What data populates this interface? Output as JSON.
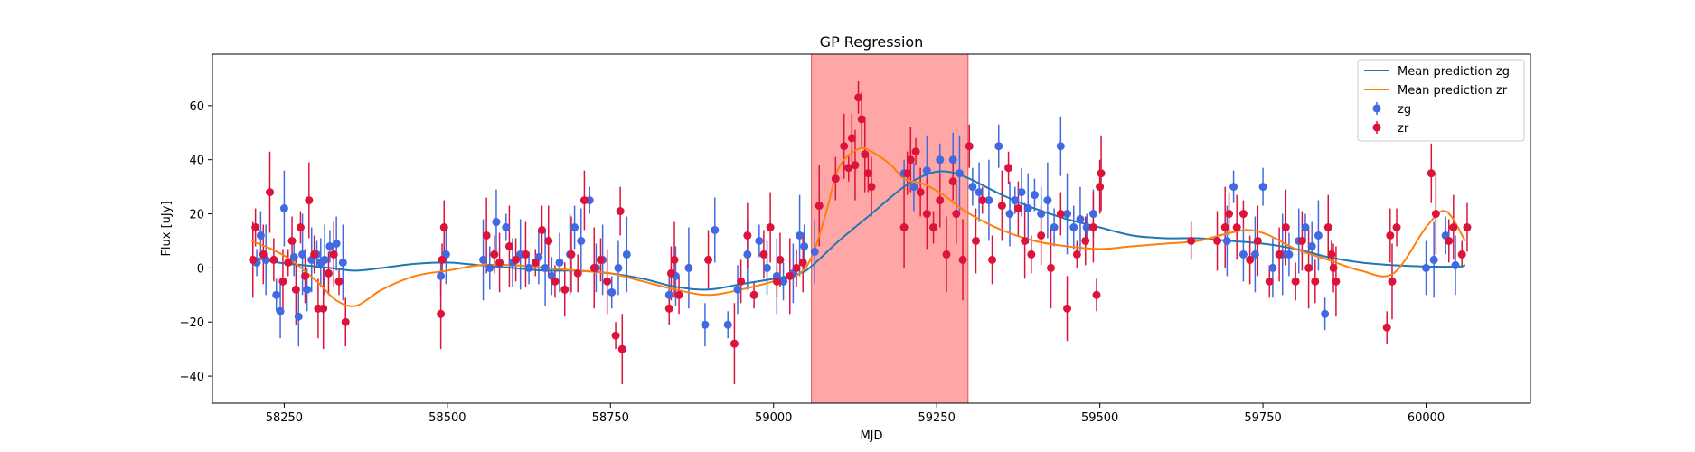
{
  "chart_data": {
    "type": "scatter",
    "title": "GP Regression",
    "xlabel": "MJD",
    "ylabel": "Flux [uJy]",
    "xlim": [
      58140,
      60160
    ],
    "ylim": [
      -50,
      79
    ],
    "x_ticks": [
      58250,
      58500,
      58750,
      59000,
      59250,
      59500,
      59750,
      60000
    ],
    "y_ticks": [
      -40,
      -20,
      0,
      20,
      40,
      60
    ],
    "grid": false,
    "legend_position": "top-right",
    "highlight_region": {
      "x0": 59058,
      "x1": 59298,
      "color": "#ff6b6b"
    },
    "lines": [
      {
        "name": "Mean prediction zg",
        "color": "#1f77b4",
        "x": [
          58200,
          58240,
          58280,
          58320,
          58360,
          58400,
          58450,
          58500,
          58550,
          58600,
          58650,
          58700,
          58750,
          58800,
          58850,
          58900,
          58950,
          59000,
          59040,
          59060,
          59100,
          59150,
          59200,
          59240,
          59270,
          59300,
          59350,
          59400,
          59450,
          59500,
          59550,
          59600,
          59650,
          59700,
          59750,
          59800,
          59850,
          59900,
          59950,
          60000,
          60050,
          60060
        ],
        "y": [
          4,
          2,
          1,
          0,
          -1,
          0,
          1.5,
          2,
          1,
          0,
          -1,
          -1,
          -2,
          -4,
          -7,
          -8,
          -6,
          -4,
          -2,
          1,
          10,
          20,
          30,
          35,
          35.5,
          33,
          27,
          22,
          18,
          15,
          12,
          11,
          11,
          10,
          9,
          7,
          4,
          2,
          1,
          0.5,
          0.5,
          1
        ]
      },
      {
        "name": "Mean prediction zr",
        "color": "#ff7f0e",
        "x": [
          58200,
          58230,
          58260,
          58300,
          58330,
          58360,
          58400,
          58450,
          58500,
          58550,
          58600,
          58650,
          58700,
          58750,
          58800,
          58850,
          58900,
          58950,
          59000,
          59040,
          59060,
          59080,
          59100,
          59130,
          59150,
          59180,
          59200,
          59230,
          59260,
          59300,
          59350,
          59400,
          59450,
          59500,
          59550,
          59600,
          59650,
          59700,
          59730,
          59760,
          59800,
          59850,
          59900,
          59950,
          60000,
          60030,
          60060
        ],
        "y": [
          10,
          7,
          3,
          -5,
          -12,
          -14,
          -8,
          -3,
          -1,
          1,
          1,
          0,
          -1,
          -2,
          -5,
          -8,
          -10,
          -8,
          -5,
          -2,
          5,
          20,
          37,
          44,
          43,
          38,
          33,
          31,
          27,
          20,
          14,
          10,
          8,
          7,
          8,
          9,
          10,
          13,
          14,
          12,
          7,
          3,
          -1,
          -2,
          15,
          21,
          10
        ]
      }
    ],
    "scatter": [
      {
        "name": "zg",
        "color": "#4169e1",
        "x": [
          58208,
          58214,
          58222,
          58238,
          58244,
          58250,
          58265,
          58272,
          58278,
          58285,
          58292,
          58300,
          58306,
          58312,
          58320,
          58330,
          58340,
          58490,
          58498,
          58555,
          58565,
          58575,
          58590,
          58600,
          58612,
          58625,
          58640,
          58650,
          58660,
          58672,
          58688,
          58695,
          58705,
          58718,
          58728,
          58738,
          58752,
          58762,
          58775,
          58840,
          58850,
          58870,
          58895,
          58910,
          58930,
          58945,
          58960,
          58978,
          58990,
          59005,
          59015,
          59030,
          59040,
          59047,
          59063,
          59200,
          59215,
          59235,
          59255,
          59275,
          59285,
          59305,
          59315,
          59330,
          59345,
          59362,
          59370,
          59380,
          59390,
          59400,
          59410,
          59420,
          59430,
          59440,
          59450,
          59460,
          59470,
          59480,
          59490,
          59695,
          59705,
          59720,
          59738,
          59750,
          59765,
          59780,
          59790,
          59805,
          59815,
          59825,
          59835,
          59845,
          60000,
          60012,
          60030,
          60045
        ],
        "y": [
          2,
          12,
          3,
          -10,
          -16,
          22,
          4,
          -18,
          5,
          -8,
          3,
          5,
          2,
          3,
          8,
          9,
          2,
          -3,
          5,
          3,
          0,
          17,
          15,
          2,
          5,
          0,
          4,
          0,
          -3,
          2,
          5,
          15,
          10,
          25,
          0,
          3,
          -9,
          0,
          5,
          -10,
          -3,
          0,
          -21,
          14,
          -21,
          -8,
          5,
          10,
          0,
          -3,
          -5,
          -2,
          12,
          8,
          6,
          35,
          30,
          36,
          40,
          40,
          35,
          30,
          28,
          25,
          45,
          20,
          25,
          28,
          22,
          27,
          20,
          25,
          15,
          45,
          20,
          15,
          18,
          15,
          20,
          10,
          30,
          5,
          5,
          30,
          0,
          5,
          5,
          10,
          15,
          8,
          12,
          -17,
          0,
          3,
          12,
          1
        ]
      },
      {
        "name": "zr",
        "color": "#dc143c",
        "x": [
          58202,
          58206,
          58218,
          58228,
          58234,
          58248,
          58256,
          58262,
          58268,
          58275,
          58282,
          58288,
          58296,
          58302,
          58310,
          58318,
          58326,
          58334,
          58344,
          58490,
          58492,
          58495,
          58560,
          58572,
          58580,
          58595,
          58605,
          58620,
          58635,
          58645,
          58655,
          58665,
          58680,
          58690,
          58700,
          58710,
          58725,
          58735,
          58745,
          58758,
          58765,
          58768,
          58840,
          58843,
          58848,
          58855,
          58900,
          58940,
          58950,
          58960,
          58970,
          58985,
          58995,
          59005,
          59010,
          59025,
          59035,
          59045,
          59070,
          59095,
          59108,
          59115,
          59120,
          59125,
          59130,
          59135,
          59140,
          59145,
          59150,
          59200,
          59205,
          59210,
          59218,
          59225,
          59235,
          59245,
          59255,
          59265,
          59275,
          59280,
          59290,
          59300,
          59310,
          59320,
          59335,
          59350,
          59360,
          59375,
          59385,
          59395,
          59410,
          59425,
          59440,
          59450,
          59465,
          59478,
          59490,
          59495,
          59500,
          59502,
          59640,
          59680,
          59692,
          59698,
          59710,
          59720,
          59730,
          59742,
          59760,
          59775,
          59785,
          59800,
          59810,
          59820,
          59830,
          59850,
          59855,
          59858,
          59862,
          59940,
          59945,
          59948,
          59955,
          60008,
          60015,
          60035,
          60042,
          60055,
          60063
        ],
        "y": [
          3,
          15,
          5,
          28,
          3,
          -5,
          2,
          10,
          -8,
          15,
          -3,
          25,
          5,
          -15,
          -15,
          -2,
          5,
          -5,
          -20,
          -17,
          3,
          15,
          12,
          5,
          2,
          8,
          3,
          5,
          2,
          14,
          10,
          -5,
          -8,
          5,
          -2,
          25,
          0,
          3,
          -5,
          -25,
          21,
          -30,
          -15,
          -2,
          3,
          -10,
          3,
          -28,
          -5,
          12,
          -10,
          5,
          15,
          -5,
          3,
          -3,
          0,
          2,
          23,
          33,
          45,
          37,
          48,
          38,
          63,
          55,
          42,
          35,
          30,
          15,
          35,
          40,
          43,
          28,
          20,
          15,
          25,
          5,
          32,
          20,
          3,
          45,
          10,
          25,
          3,
          23,
          37,
          22,
          10,
          5,
          12,
          0,
          20,
          -15,
          5,
          10,
          15,
          -10,
          30,
          35,
          10,
          10,
          15,
          20,
          15,
          20,
          3,
          10,
          -5,
          5,
          15,
          -5,
          10,
          0,
          -5,
          15,
          5,
          0,
          -5,
          -22,
          12,
          -5,
          15,
          35,
          20,
          10,
          15,
          5,
          15
        ]
      }
    ]
  }
}
